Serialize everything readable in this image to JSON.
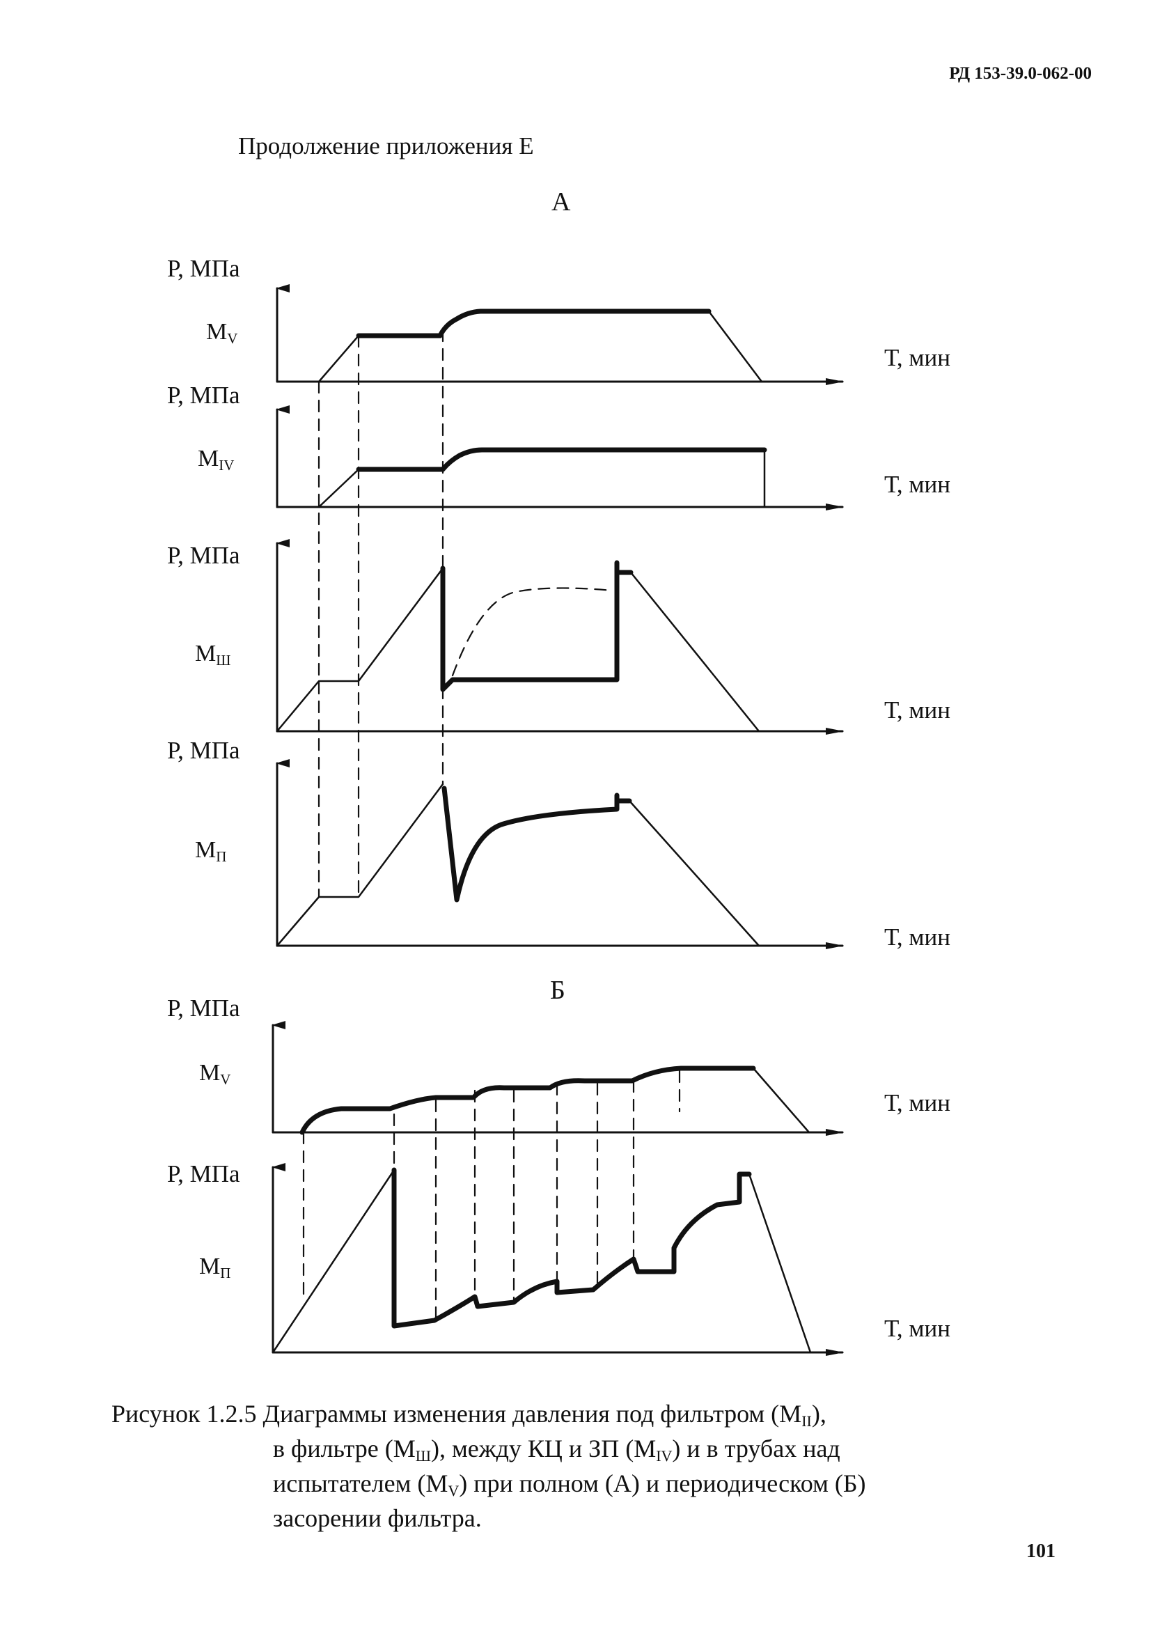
{
  "header": {
    "doc_code": "РД 153-39.0-062-00"
  },
  "continuation": "Продолжение приложения Е",
  "section_a": "А",
  "section_b": "Б",
  "axes": {
    "y_label": "Р, МПа",
    "x_label": "Т, мин"
  },
  "series_labels": {
    "mv": {
      "base": "M",
      "sub": "V"
    },
    "m1v": {
      "base": "M",
      "sub": "IV"
    },
    "msh": {
      "base": "M",
      "sub": "Ш"
    },
    "mp": {
      "base": "M",
      "sub": "П"
    }
  },
  "caption": {
    "lead": "Рисунок 1.2.5 Диаграммы изменения давления под фильтром (М",
    "lead_sub": "II",
    "lead_end": "),",
    "line2_a": "в фильтре (М",
    "line2_sub1": "Ш",
    "line2_b": "), между КЦ и ЗП (М",
    "line2_sub2": "IV",
    "line2_c": ") и в трубах над",
    "line3_a": "испытателем (М",
    "line3_sub": "V",
    "line3_b": ") при полном (А) и периодическом (Б)",
    "line4": "засорении фильтра."
  },
  "page_number": "101"
}
